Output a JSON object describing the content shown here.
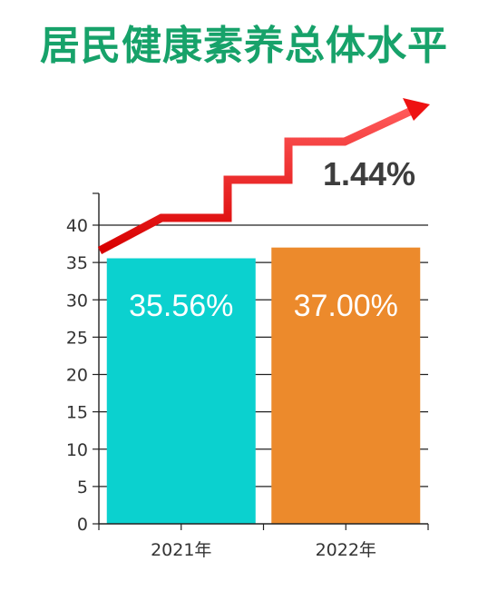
{
  "title": "居民健康素养总体水平",
  "growth_label": "1.44%",
  "colors": {
    "title": "#17a26a",
    "bar_2021": "#0bd1cf",
    "bar_2022": "#ec8a2c",
    "arrow": "#ee1111",
    "axis": "#222222"
  },
  "chart_data": {
    "type": "bar",
    "title": "居民健康素养总体水平",
    "categories": [
      "2021年",
      "2022年"
    ],
    "values": [
      35.56,
      37.0
    ],
    "value_labels": [
      "35.56%",
      "37.00%"
    ],
    "yticks": [
      0,
      5,
      10,
      15,
      20,
      25,
      30,
      35,
      40
    ],
    "ylim": [
      0,
      40
    ],
    "grid": true,
    "annotation": "1.44%",
    "xlabel": "",
    "ylabel": ""
  }
}
